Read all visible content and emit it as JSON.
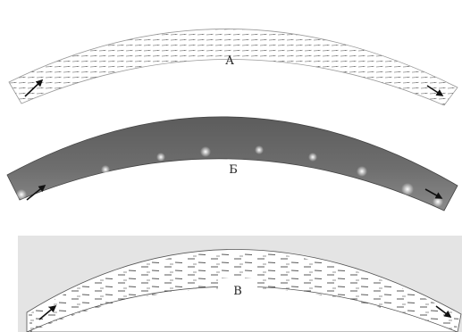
{
  "panels": [
    {
      "label": "А",
      "style": "vector-field"
    },
    {
      "label": "Б",
      "style": "gray-shaded"
    },
    {
      "label": "В",
      "style": "streamlines"
    }
  ],
  "colors": {
    "background": "#ffffff",
    "panel_c_background": "#e4e4e4",
    "panel_b_fill": "#6a6a6a",
    "arrow": "#111111",
    "vector_marks": "#8a8a8a",
    "streak": "#3a3a3a"
  }
}
